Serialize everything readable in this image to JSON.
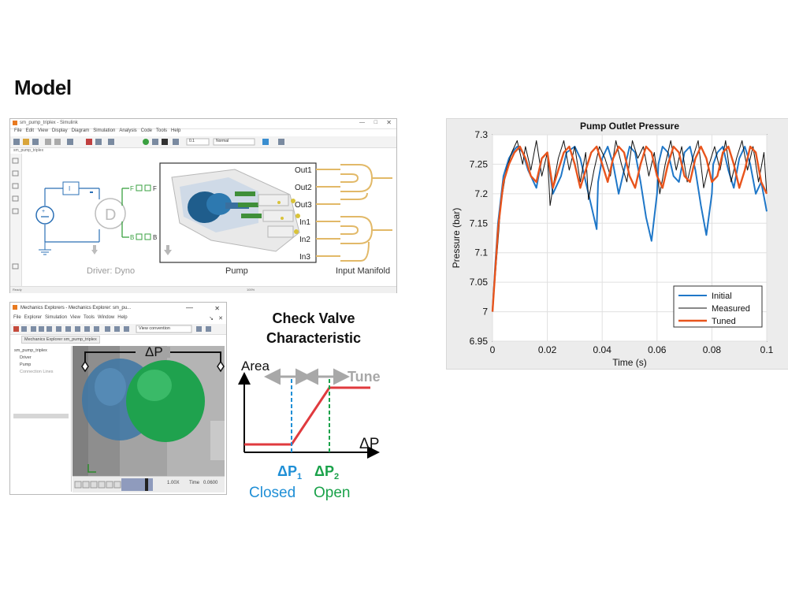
{
  "slide": {
    "title": "Model"
  },
  "simulink": {
    "window_title": "sm_pump_triplex - Simulink",
    "menu": [
      "File",
      "Edit",
      "View",
      "Display",
      "Diagram",
      "Simulation",
      "Analysis",
      "Code",
      "Tools",
      "Help"
    ],
    "model_tab": "sm_pump_triplex",
    "status_left": "Ready",
    "status_right": "100%",
    "block_driver_label": "Driver: Dyno",
    "block_pump_label": "Pump",
    "block_manifold_label": "Input Manifold",
    "port_f": "F",
    "port_b": "B",
    "driver_symbol": "D",
    "ports_right": [
      "Out1",
      "Out2",
      "Out3",
      "In1",
      "In2",
      "In3"
    ],
    "sim_time": "0.1",
    "solver": "Normal"
  },
  "mechanics": {
    "window_title": "Mechanics Explorers - Mechanics Explorer: sm_pu...",
    "menu": [
      "File",
      "Explorer",
      "Simulation",
      "View",
      "Tools",
      "Window",
      "Help"
    ],
    "tab": "Mechanics Explorer sm_pump_triplex",
    "view_convention": "View convention",
    "tree": [
      "sm_pump_triplex",
      "Driver",
      "Pump",
      "Connection Lines"
    ],
    "delta_p": "ΔP",
    "speed": "1.00X",
    "time_label": "Time",
    "time_value": "0.0600"
  },
  "check_valve": {
    "title_line1": "Check Valve",
    "title_line2": "Characteristic",
    "y_label": "Area",
    "x_label": "ΔP",
    "tune": "Tune",
    "p1": "ΔP",
    "p1_sub": "1",
    "p2": "ΔP",
    "p2_sub": "2",
    "closed": "Closed",
    "open": "Open",
    "colors": {
      "line": "#e03a3e",
      "p1": "#1f8fd6",
      "p2": "#1aa24a",
      "tune": "#a8a8a8"
    }
  },
  "chart_data": {
    "type": "line",
    "title": "Pump Outlet Pressure",
    "xlabel": "Time (s)",
    "ylabel": "Pressure (bar)",
    "xlim": [
      0,
      0.1
    ],
    "ylim": [
      6.95,
      7.3
    ],
    "xticks": [
      "0",
      "0.02",
      "0.04",
      "0.06",
      "0.08",
      "0.1"
    ],
    "yticks": [
      "6.95",
      "7",
      "7.05",
      "7.1",
      "7.15",
      "7.2",
      "7.25",
      "7.3"
    ],
    "grid": true,
    "legend_position": "bottom-right",
    "series": [
      {
        "name": "Initial",
        "color": "#1f77c8",
        "x": [
          0,
          0.001,
          0.002,
          0.004,
          0.006,
          0.008,
          0.009,
          0.011,
          0.013,
          0.016,
          0.018,
          0.02,
          0.022,
          0.025,
          0.027,
          0.03,
          0.032,
          0.034,
          0.036,
          0.038,
          0.0385,
          0.04,
          0.042,
          0.044,
          0.046,
          0.048,
          0.05,
          0.052,
          0.054,
          0.056,
          0.058,
          0.06,
          0.0605,
          0.062,
          0.064,
          0.066,
          0.068,
          0.07,
          0.072,
          0.074,
          0.076,
          0.078,
          0.08,
          0.0805,
          0.082,
          0.084,
          0.086,
          0.088,
          0.09,
          0.092,
          0.094,
          0.096,
          0.098,
          0.1
        ],
        "y": [
          7.0,
          7.08,
          7.15,
          7.23,
          7.26,
          7.275,
          7.28,
          7.27,
          7.24,
          7.21,
          7.26,
          7.27,
          7.2,
          7.23,
          7.27,
          7.28,
          7.26,
          7.22,
          7.18,
          7.14,
          7.22,
          7.26,
          7.28,
          7.25,
          7.2,
          7.24,
          7.28,
          7.27,
          7.22,
          7.16,
          7.12,
          7.2,
          7.25,
          7.28,
          7.27,
          7.23,
          7.22,
          7.27,
          7.28,
          7.24,
          7.18,
          7.13,
          7.2,
          7.25,
          7.27,
          7.28,
          7.24,
          7.21,
          7.26,
          7.28,
          7.25,
          7.2,
          7.22,
          7.17
        ]
      },
      {
        "name": "Measured",
        "color": "#111111",
        "x": [
          0,
          0.001,
          0.002,
          0.003,
          0.005,
          0.007,
          0.009,
          0.011,
          0.012,
          0.014,
          0.016,
          0.018,
          0.02,
          0.021,
          0.022,
          0.024,
          0.026,
          0.028,
          0.03,
          0.032,
          0.034,
          0.035,
          0.037,
          0.039,
          0.041,
          0.043,
          0.045,
          0.047,
          0.049,
          0.051,
          0.053,
          0.055,
          0.057,
          0.059,
          0.061,
          0.063,
          0.065,
          0.067,
          0.069,
          0.071,
          0.073,
          0.075,
          0.077,
          0.079,
          0.081,
          0.083,
          0.085,
          0.087,
          0.089,
          0.091,
          0.093,
          0.095,
          0.097,
          0.099,
          0.1
        ],
        "y": [
          7.0,
          7.06,
          7.12,
          7.18,
          7.24,
          7.27,
          7.29,
          7.25,
          7.28,
          7.24,
          7.29,
          7.23,
          7.27,
          7.18,
          7.21,
          7.26,
          7.29,
          7.24,
          7.28,
          7.22,
          7.27,
          7.19,
          7.24,
          7.28,
          7.26,
          7.23,
          7.29,
          7.25,
          7.22,
          7.29,
          7.26,
          7.28,
          7.23,
          7.27,
          7.2,
          7.25,
          7.29,
          7.24,
          7.28,
          7.22,
          7.26,
          7.29,
          7.21,
          7.25,
          7.28,
          7.24,
          7.29,
          7.22,
          7.26,
          7.29,
          7.24,
          7.28,
          7.22,
          7.27,
          7.2
        ]
      },
      {
        "name": "Tuned",
        "color": "#e8541c",
        "x": [
          0,
          0.001,
          0.002,
          0.004,
          0.006,
          0.008,
          0.01,
          0.012,
          0.014,
          0.016,
          0.018,
          0.02,
          0.022,
          0.024,
          0.026,
          0.028,
          0.03,
          0.032,
          0.034,
          0.036,
          0.038,
          0.04,
          0.042,
          0.044,
          0.046,
          0.048,
          0.05,
          0.052,
          0.054,
          0.056,
          0.058,
          0.06,
          0.062,
          0.064,
          0.066,
          0.068,
          0.07,
          0.072,
          0.074,
          0.076,
          0.078,
          0.08,
          0.082,
          0.084,
          0.086,
          0.088,
          0.09,
          0.092,
          0.094,
          0.096,
          0.098,
          0.1
        ],
        "y": [
          7.0,
          7.07,
          7.14,
          7.22,
          7.25,
          7.27,
          7.28,
          7.26,
          7.23,
          7.22,
          7.26,
          7.27,
          7.21,
          7.24,
          7.27,
          7.28,
          7.25,
          7.21,
          7.24,
          7.27,
          7.28,
          7.25,
          7.22,
          7.26,
          7.28,
          7.27,
          7.23,
          7.21,
          7.25,
          7.28,
          7.27,
          7.23,
          7.21,
          7.25,
          7.28,
          7.27,
          7.23,
          7.22,
          7.26,
          7.28,
          7.26,
          7.22,
          7.23,
          7.27,
          7.28,
          7.25,
          7.21,
          7.24,
          7.28,
          7.27,
          7.22,
          7.2
        ]
      }
    ]
  }
}
